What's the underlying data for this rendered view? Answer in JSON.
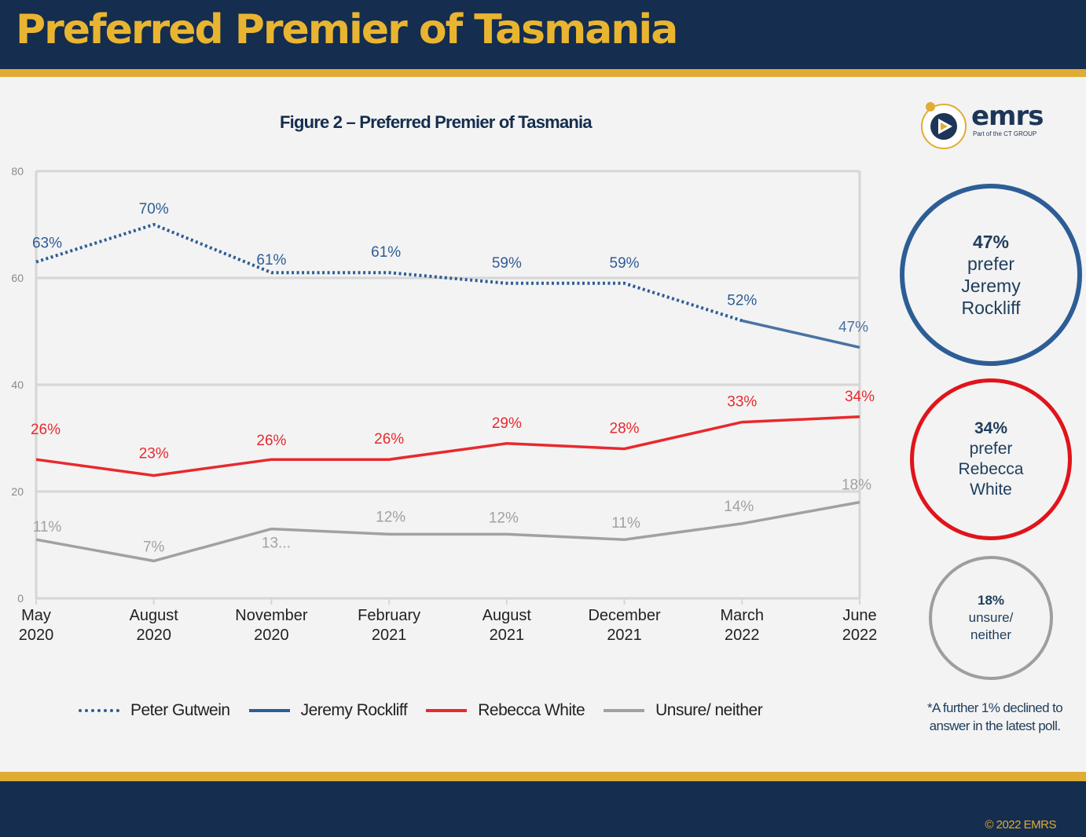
{
  "header": {
    "title": "Preferred Premier of Tasmania"
  },
  "footer": {
    "copyright": "© 2022 EMRS"
  },
  "logo": {
    "word": "emrs",
    "sub": "Part of the CT GROUP"
  },
  "figure": {
    "title": "Figure 2 – Preferred Premier of Tasmania"
  },
  "callouts": {
    "rockliff": {
      "value": "47%",
      "l1": "prefer",
      "l2": "Jeremy",
      "l3": "Rockliff"
    },
    "white": {
      "value": "34%",
      "l1": "prefer",
      "l2": "Rebecca",
      "l3": "White"
    },
    "unsure": {
      "value": "18%",
      "l1": "unsure/",
      "l2": "neither"
    }
  },
  "note": "*A further 1% declined to answer in the latest poll.",
  "chart_data": {
    "type": "line",
    "categories": [
      [
        "May",
        "2020"
      ],
      [
        "August",
        "2020"
      ],
      [
        "November",
        "2020"
      ],
      [
        "February",
        "2021"
      ],
      [
        "August",
        "2021"
      ],
      [
        "December",
        "2021"
      ],
      [
        "March",
        "2022"
      ],
      [
        "June",
        "2022"
      ]
    ],
    "ylim": [
      0,
      80
    ],
    "yticks": [
      0,
      20,
      40,
      60,
      80
    ],
    "grid": true,
    "legend_position": "bottom",
    "series": [
      {
        "name": "Peter Gutwein",
        "color": "#2d5d96",
        "dashed": true,
        "values": [
          63,
          70,
          61,
          61,
          59,
          59,
          52,
          null
        ],
        "labels": [
          "63%",
          "70%",
          "61%",
          "61%",
          "59%",
          "59%",
          "52%",
          ""
        ]
      },
      {
        "name": "Jeremy Rockliff",
        "color": "#4a72a5",
        "dashed": false,
        "values": [
          null,
          null,
          null,
          null,
          null,
          null,
          52,
          47
        ],
        "labels": [
          "",
          "",
          "",
          "",
          "",
          "",
          "",
          "47%"
        ]
      },
      {
        "name": "Rebecca White",
        "color": "#e8292e",
        "dashed": false,
        "values": [
          26,
          23,
          26,
          26,
          29,
          28,
          33,
          34
        ],
        "labels": [
          "26%",
          "23%",
          "26%",
          "26%",
          "29%",
          "28%",
          "33%",
          "34%"
        ]
      },
      {
        "name": "Unsure/ neither",
        "color": "#a1a1a1",
        "dashed": false,
        "values": [
          11,
          7,
          13,
          12,
          12,
          11,
          14,
          18
        ],
        "labels": [
          "11%",
          "7%",
          "13...",
          "12%",
          "12%",
          "11%",
          "14%",
          "18%"
        ]
      }
    ]
  }
}
